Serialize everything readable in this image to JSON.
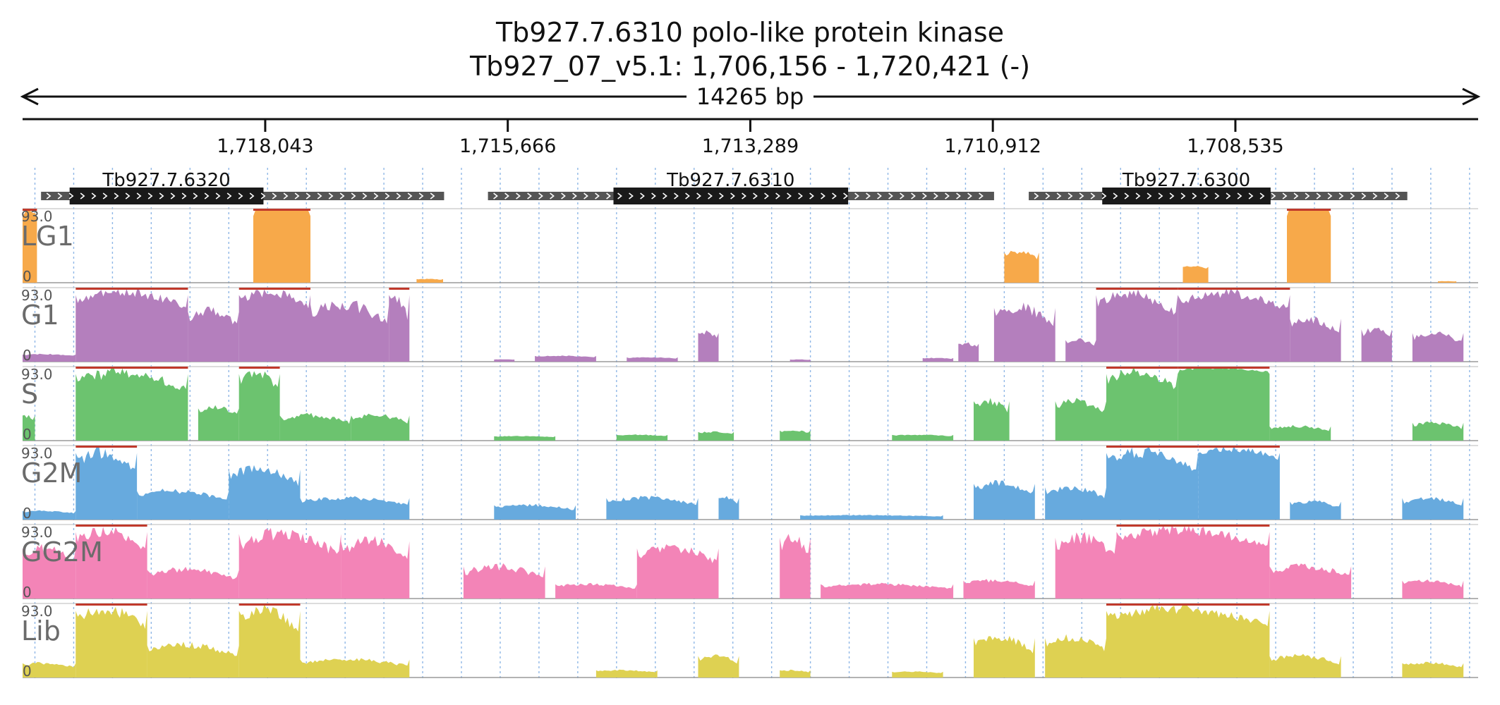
{
  "title": {
    "line1": "Tb927.7.6310  polo-like protein kinase",
    "line2": "Tb927_07_v5.1: 1,706,156 - 1,720,421 (-)"
  },
  "span_label": "14265 bp",
  "colors": {
    "LG1": "#f7a94a",
    "G1": "#b47fbd",
    "S": "#6cc36f",
    "G2M": "#67aade",
    "GG2M": "#f384b7",
    "Lib": "#ded152",
    "clip": "#c0392b",
    "gridline": "#8fb7e6",
    "gene_utr": "#555555",
    "gene_cds": "#1a1a1a"
  },
  "chart_data": {
    "type": "area",
    "genome_region": {
      "chromosome": "Tb927_07_v5.1",
      "start": 1706156,
      "end": 1720421,
      "strand": "-"
    },
    "ticks": [
      {
        "pos": 1718043,
        "label": "1,718,043"
      },
      {
        "pos": 1715666,
        "label": "1,715,666"
      },
      {
        "pos": 1713289,
        "label": "1,713,289"
      },
      {
        "pos": 1710912,
        "label": "1,710,912"
      },
      {
        "pos": 1708535,
        "label": "1,708,535"
      }
    ],
    "genes": [
      {
        "name": "Tb927.7.6320",
        "start": 1720240,
        "end": 1716290,
        "cds_start": 1719960,
        "cds_end": 1718060
      },
      {
        "name": "Tb927.7.6310",
        "start": 1715860,
        "end": 1710900,
        "cds_start": 1714630,
        "cds_end": 1712330
      },
      {
        "name": "Tb927.7.6300",
        "start": 1710560,
        "end": 1706850,
        "cds_start": 1709840,
        "cds_end": 1708190
      }
    ],
    "ylim": [
      0,
      93.0
    ],
    "y_max_label": "93.0",
    "y_min_label": "0",
    "tracks": [
      {
        "name": "LG1",
        "segments": [
          {
            "s": 1720421,
            "e": 1720280,
            "peak": 93,
            "lo": 75
          },
          {
            "s": 1718160,
            "e": 1717600,
            "peak": 93,
            "lo": 88
          },
          {
            "s": 1716560,
            "e": 1716300,
            "peak": 5,
            "lo": 2
          },
          {
            "s": 1710800,
            "e": 1710460,
            "peak": 42,
            "lo": 18
          },
          {
            "s": 1709050,
            "e": 1708800,
            "peak": 22,
            "lo": 12
          },
          {
            "s": 1708030,
            "e": 1707600,
            "peak": 93,
            "lo": 88
          },
          {
            "s": 1706550,
            "e": 1706370,
            "peak": 2,
            "lo": 1
          }
        ]
      },
      {
        "name": "G1",
        "segments": [
          {
            "s": 1720421,
            "e": 1719900,
            "peak": 10,
            "lo": 5
          },
          {
            "s": 1719900,
            "e": 1718800,
            "peak": 93,
            "lo": 45
          },
          {
            "s": 1718800,
            "e": 1718300,
            "peak": 70,
            "lo": 20
          },
          {
            "s": 1718300,
            "e": 1717600,
            "peak": 93,
            "lo": 45
          },
          {
            "s": 1717600,
            "e": 1716830,
            "peak": 80,
            "lo": 15
          },
          {
            "s": 1716830,
            "e": 1716630,
            "peak": 93,
            "lo": 8
          },
          {
            "s": 1715800,
            "e": 1715600,
            "peak": 3,
            "lo": 2
          },
          {
            "s": 1715400,
            "e": 1714800,
            "peak": 8,
            "lo": 3
          },
          {
            "s": 1714500,
            "e": 1714000,
            "peak": 6,
            "lo": 2
          },
          {
            "s": 1713800,
            "e": 1713600,
            "peak": 40,
            "lo": 15
          },
          {
            "s": 1712900,
            "e": 1712700,
            "peak": 3,
            "lo": 1
          },
          {
            "s": 1711600,
            "e": 1711300,
            "peak": 5,
            "lo": 2
          },
          {
            "s": 1711250,
            "e": 1711050,
            "peak": 25,
            "lo": 8
          },
          {
            "s": 1710900,
            "e": 1710300,
            "peak": 75,
            "lo": 15
          },
          {
            "s": 1710200,
            "e": 1709900,
            "peak": 30,
            "lo": 10
          },
          {
            "s": 1709900,
            "e": 1709100,
            "peak": 93,
            "lo": 30
          },
          {
            "s": 1709100,
            "e": 1708000,
            "peak": 93,
            "lo": 40
          },
          {
            "s": 1708000,
            "e": 1707500,
            "peak": 60,
            "lo": 10
          },
          {
            "s": 1707300,
            "e": 1707000,
            "peak": 45,
            "lo": 10
          },
          {
            "s": 1706800,
            "e": 1706300,
            "peak": 40,
            "lo": 8
          }
        ]
      },
      {
        "name": "S",
        "segments": [
          {
            "s": 1720421,
            "e": 1720300,
            "peak": 35,
            "lo": 10
          },
          {
            "s": 1719900,
            "e": 1718800,
            "peak": 93,
            "lo": 35
          },
          {
            "s": 1718700,
            "e": 1718300,
            "peak": 45,
            "lo": 20
          },
          {
            "s": 1718300,
            "e": 1717900,
            "peak": 93,
            "lo": 35
          },
          {
            "s": 1717900,
            "e": 1717200,
            "peak": 35,
            "lo": 10
          },
          {
            "s": 1717200,
            "e": 1716630,
            "peak": 35,
            "lo": 10
          },
          {
            "s": 1715800,
            "e": 1715200,
            "peak": 6,
            "lo": 3
          },
          {
            "s": 1714600,
            "e": 1714100,
            "peak": 8,
            "lo": 3
          },
          {
            "s": 1713800,
            "e": 1713450,
            "peak": 12,
            "lo": 4
          },
          {
            "s": 1713000,
            "e": 1712700,
            "peak": 14,
            "lo": 5
          },
          {
            "s": 1711900,
            "e": 1711300,
            "peak": 8,
            "lo": 3
          },
          {
            "s": 1711100,
            "e": 1710750,
            "peak": 55,
            "lo": 15
          },
          {
            "s": 1710300,
            "e": 1709800,
            "peak": 55,
            "lo": 15
          },
          {
            "s": 1709800,
            "e": 1709100,
            "peak": 93,
            "lo": 40
          },
          {
            "s": 1709100,
            "e": 1708200,
            "peak": 93,
            "lo": 80
          },
          {
            "s": 1708200,
            "e": 1707600,
            "peak": 20,
            "lo": 5
          },
          {
            "s": 1706800,
            "e": 1706300,
            "peak": 25,
            "lo": 5
          }
        ]
      },
      {
        "name": "G2M",
        "segments": [
          {
            "s": 1720421,
            "e": 1719900,
            "peak": 12,
            "lo": 4
          },
          {
            "s": 1719900,
            "e": 1719300,
            "peak": 93,
            "lo": 25
          },
          {
            "s": 1719300,
            "e": 1718400,
            "peak": 40,
            "lo": 10
          },
          {
            "s": 1718400,
            "e": 1717700,
            "peak": 70,
            "lo": 20
          },
          {
            "s": 1717700,
            "e": 1716630,
            "peak": 30,
            "lo": 8
          },
          {
            "s": 1715800,
            "e": 1715000,
            "peak": 20,
            "lo": 5
          },
          {
            "s": 1714700,
            "e": 1713800,
            "peak": 30,
            "lo": 8
          },
          {
            "s": 1713600,
            "e": 1713400,
            "peak": 30,
            "lo": 10
          },
          {
            "s": 1712800,
            "e": 1711400,
            "peak": 6,
            "lo": 2
          },
          {
            "s": 1711100,
            "e": 1710500,
            "peak": 50,
            "lo": 15
          },
          {
            "s": 1710400,
            "e": 1709800,
            "peak": 45,
            "lo": 10
          },
          {
            "s": 1709800,
            "e": 1708900,
            "peak": 93,
            "lo": 30
          },
          {
            "s": 1708900,
            "e": 1708100,
            "peak": 93,
            "lo": 60
          },
          {
            "s": 1708000,
            "e": 1707500,
            "peak": 25,
            "lo": 5
          },
          {
            "s": 1706900,
            "e": 1706300,
            "peak": 30,
            "lo": 5
          }
        ]
      },
      {
        "name": "GG2M",
        "segments": [
          {
            "s": 1720421,
            "e": 1719900,
            "peak": 70,
            "lo": 15
          },
          {
            "s": 1719900,
            "e": 1719200,
            "peak": 93,
            "lo": 30
          },
          {
            "s": 1719200,
            "e": 1718300,
            "peak": 40,
            "lo": 10
          },
          {
            "s": 1718300,
            "e": 1717300,
            "peak": 90,
            "lo": 20
          },
          {
            "s": 1717300,
            "e": 1716630,
            "peak": 80,
            "lo": 15
          },
          {
            "s": 1716100,
            "e": 1715300,
            "peak": 45,
            "lo": 5
          },
          {
            "s": 1715200,
            "e": 1714400,
            "peak": 20,
            "lo": 5
          },
          {
            "s": 1714400,
            "e": 1713600,
            "peak": 70,
            "lo": 20
          },
          {
            "s": 1713000,
            "e": 1712700,
            "peak": 85,
            "lo": 20
          },
          {
            "s": 1712600,
            "e": 1711300,
            "peak": 20,
            "lo": 5
          },
          {
            "s": 1711200,
            "e": 1710500,
            "peak": 25,
            "lo": 5
          },
          {
            "s": 1710300,
            "e": 1709700,
            "peak": 85,
            "lo": 20
          },
          {
            "s": 1709700,
            "e": 1708200,
            "peak": 93,
            "lo": 40
          },
          {
            "s": 1708200,
            "e": 1707400,
            "peak": 45,
            "lo": 10
          },
          {
            "s": 1706900,
            "e": 1706300,
            "peak": 25,
            "lo": 5
          }
        ]
      },
      {
        "name": "Lib",
        "segments": [
          {
            "s": 1720421,
            "e": 1719900,
            "peak": 20,
            "lo": 5
          },
          {
            "s": 1719900,
            "e": 1719200,
            "peak": 93,
            "lo": 30
          },
          {
            "s": 1719200,
            "e": 1718300,
            "peak": 45,
            "lo": 10
          },
          {
            "s": 1718300,
            "e": 1717700,
            "peak": 93,
            "lo": 25
          },
          {
            "s": 1717700,
            "e": 1716630,
            "peak": 25,
            "lo": 5
          },
          {
            "s": 1714800,
            "e": 1714200,
            "peak": 10,
            "lo": 3
          },
          {
            "s": 1713800,
            "e": 1713400,
            "peak": 30,
            "lo": 5
          },
          {
            "s": 1713000,
            "e": 1712700,
            "peak": 10,
            "lo": 3
          },
          {
            "s": 1711900,
            "e": 1711400,
            "peak": 8,
            "lo": 3
          },
          {
            "s": 1711100,
            "e": 1710500,
            "peak": 55,
            "lo": 10
          },
          {
            "s": 1710400,
            "e": 1709800,
            "peak": 55,
            "lo": 15
          },
          {
            "s": 1709800,
            "e": 1708200,
            "peak": 93,
            "lo": 40
          },
          {
            "s": 1708200,
            "e": 1707500,
            "peak": 30,
            "lo": 5
          },
          {
            "s": 1706900,
            "e": 1706300,
            "peak": 20,
            "lo": 5
          }
        ]
      }
    ]
  }
}
